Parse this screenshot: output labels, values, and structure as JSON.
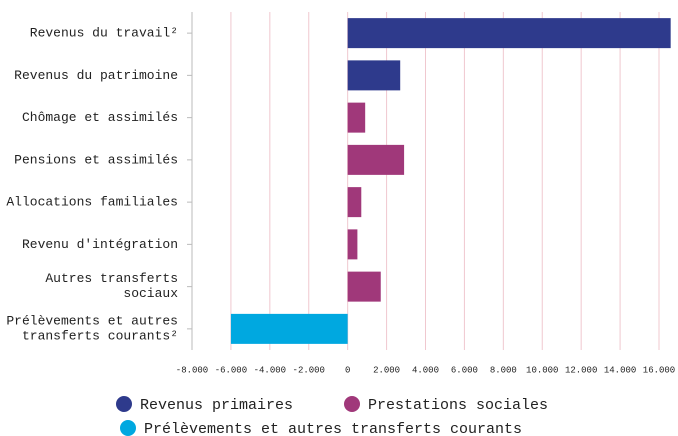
{
  "chart_data": {
    "type": "bar",
    "orientation": "horizontal",
    "categories": [
      "Revenus du travail²",
      "Revenus du patrimoine",
      "Chômage et assimilés",
      "Pensions et assimilés",
      "Allocations familiales",
      "Revenu d'intégration",
      "Autres transferts\nsociaux",
      "Prélèvements et autres\ntransferts courants²"
    ],
    "series": [
      {
        "name": "Revenus primaires",
        "color": "#2e3a8c",
        "values": [
          16600,
          2700,
          null,
          null,
          null,
          null,
          null,
          null
        ]
      },
      {
        "name": "Prestations sociales",
        "color": "#a0387a",
        "values": [
          null,
          null,
          900,
          2900,
          700,
          500,
          1700,
          null
        ]
      },
      {
        "name": "Prélèvements et autres transferts courants",
        "color": "#00a8e0",
        "values": [
          null,
          null,
          null,
          null,
          null,
          null,
          null,
          -6000
        ]
      }
    ],
    "xlim": [
      -8000,
      16000
    ],
    "xticks": [
      {
        "value": -8000,
        "label": "-8.000"
      },
      {
        "value": -6000,
        "label": "-6.000"
      },
      {
        "value": -4000,
        "label": "-4.000"
      },
      {
        "value": -2000,
        "label": "-2.000"
      },
      0,
      {
        "value": 2000,
        "label": "2.000"
      },
      {
        "value": 4000,
        "label": "4.000"
      },
      {
        "value": 6000,
        "label": "6.000"
      },
      {
        "value": 8000,
        "label": "8.000"
      },
      {
        "value": 10000,
        "label": "10.000"
      },
      {
        "value": 12000,
        "label": "12.000"
      },
      {
        "value": 14000,
        "label": "14.000"
      },
      {
        "value": 16000,
        "label": "16.000"
      }
    ],
    "grid": true
  }
}
